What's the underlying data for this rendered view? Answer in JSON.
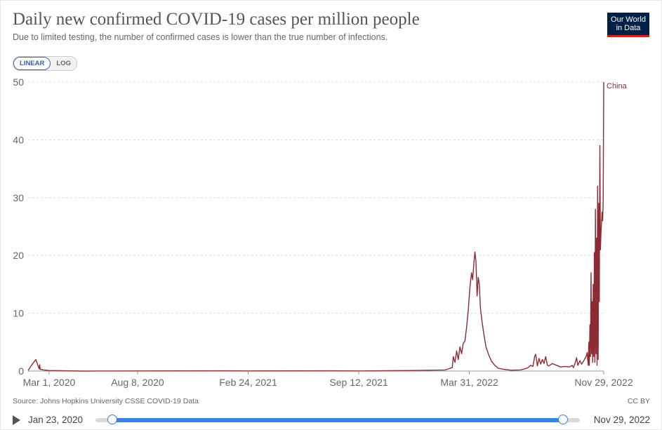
{
  "header": {
    "title": "Daily new confirmed COVID-19 cases per million people",
    "subtitle": "Due to limited testing, the number of confirmed cases is lower than the true number of infections.",
    "logo_line1": "Our World",
    "logo_line2": "in Data"
  },
  "toggle": {
    "linear_label": "LINEAR",
    "log_label": "LOG",
    "selected": "LINEAR"
  },
  "footer": {
    "source": "Source: Johns Hopkins University CSSE COVID-19 Data",
    "license": "CC BY"
  },
  "timeline": {
    "start_label": "Jan 23, 2020",
    "end_label": "Nov 29, 2022",
    "start_fraction": 0.0,
    "end_fraction": 1.0
  },
  "colors": {
    "series": "#8c2b33",
    "grid": "#dddddd",
    "accent": "#3b82e6"
  },
  "chart_data": {
    "type": "line",
    "title": "Daily new confirmed COVID-19 cases per million people",
    "subtitle": "Due to limited testing, the number of confirmed cases is lower than the true number of infections.",
    "xlabel": "",
    "ylabel": "",
    "x_range": [
      "2020-01-23",
      "2022-11-29"
    ],
    "ylim": [
      0,
      50
    ],
    "yticks": [
      0,
      10,
      20,
      30,
      40,
      50
    ],
    "xticks": [
      "Mar 1, 2020",
      "Aug 8, 2020",
      "Feb 24, 2021",
      "Sep 12, 2021",
      "Mar 31, 2022",
      "Nov 29, 2022"
    ],
    "xtick_dates": [
      "2020-03-01",
      "2020-08-08",
      "2021-02-24",
      "2021-09-12",
      "2022-03-31",
      "2022-11-29"
    ],
    "grid": true,
    "series": [
      {
        "name": "China",
        "points": [
          [
            "2020-01-23",
            0.1
          ],
          [
            "2020-01-30",
            1.1
          ],
          [
            "2020-02-06",
            2.0
          ],
          [
            "2020-02-12",
            0.4
          ],
          [
            "2020-02-13",
            1.1
          ],
          [
            "2020-02-14",
            0.3
          ],
          [
            "2020-02-20",
            0.2
          ],
          [
            "2020-03-01",
            0.1
          ],
          [
            "2020-05-01",
            0.0
          ],
          [
            "2020-08-08",
            0.02
          ],
          [
            "2021-01-15",
            0.05
          ],
          [
            "2021-02-24",
            0.02
          ],
          [
            "2021-08-01",
            0.05
          ],
          [
            "2021-09-12",
            0.03
          ],
          [
            "2021-12-15",
            0.1
          ],
          [
            "2022-02-15",
            0.2
          ],
          [
            "2022-02-28",
            0.6
          ],
          [
            "2022-03-02",
            2.5
          ],
          [
            "2022-03-05",
            1.5
          ],
          [
            "2022-03-08",
            3.5
          ],
          [
            "2022-03-11",
            2.0
          ],
          [
            "2022-03-14",
            4.2
          ],
          [
            "2022-03-17",
            3.0
          ],
          [
            "2022-03-20",
            4.8
          ],
          [
            "2022-03-23",
            5.2
          ],
          [
            "2022-03-26",
            7.5
          ],
          [
            "2022-03-29",
            10.5
          ],
          [
            "2022-04-01",
            14.5
          ],
          [
            "2022-04-04",
            17.0
          ],
          [
            "2022-04-06",
            15.8
          ],
          [
            "2022-04-08",
            18.5
          ],
          [
            "2022-04-10",
            20.6
          ],
          [
            "2022-04-12",
            19.0
          ],
          [
            "2022-04-14",
            13.0
          ],
          [
            "2022-04-16",
            16.2
          ],
          [
            "2022-04-18",
            15.0
          ],
          [
            "2022-04-20",
            11.0
          ],
          [
            "2022-04-23",
            8.5
          ],
          [
            "2022-04-26",
            6.5
          ],
          [
            "2022-04-30",
            4.2
          ],
          [
            "2022-05-05",
            2.8
          ],
          [
            "2022-05-10",
            1.7
          ],
          [
            "2022-05-16",
            1.0
          ],
          [
            "2022-05-22",
            0.5
          ],
          [
            "2022-06-01",
            0.3
          ],
          [
            "2022-06-15",
            0.15
          ],
          [
            "2022-07-01",
            0.2
          ],
          [
            "2022-07-10",
            0.4
          ],
          [
            "2022-07-15",
            0.6
          ],
          [
            "2022-07-20",
            1.0
          ],
          [
            "2022-07-24",
            0.8
          ],
          [
            "2022-07-27",
            2.5
          ],
          [
            "2022-07-29",
            2.9
          ],
          [
            "2022-08-01",
            0.9
          ],
          [
            "2022-08-04",
            2.2
          ],
          [
            "2022-08-07",
            1.2
          ],
          [
            "2022-08-10",
            2.0
          ],
          [
            "2022-08-13",
            1.3
          ],
          [
            "2022-08-16",
            2.5
          ],
          [
            "2022-08-19",
            1.0
          ],
          [
            "2022-08-22",
            0.9
          ],
          [
            "2022-08-28",
            1.3
          ],
          [
            "2022-09-05",
            1.0
          ],
          [
            "2022-09-12",
            0.7
          ],
          [
            "2022-09-20",
            0.8
          ],
          [
            "2022-09-28",
            0.7
          ],
          [
            "2022-10-03",
            1.0
          ],
          [
            "2022-10-05",
            0.6
          ],
          [
            "2022-10-08",
            1.3
          ],
          [
            "2022-10-11",
            2.3
          ],
          [
            "2022-10-13",
            1.0
          ],
          [
            "2022-10-17",
            1.8
          ],
          [
            "2022-10-20",
            1.2
          ],
          [
            "2022-10-24",
            1.8
          ],
          [
            "2022-10-28",
            2.5
          ],
          [
            "2022-10-30",
            3.2
          ],
          [
            "2022-11-01",
            1.0
          ],
          [
            "2022-11-02",
            5.0
          ],
          [
            "2022-11-03",
            1.0
          ],
          [
            "2022-11-04",
            8.0
          ],
          [
            "2022-11-05",
            2.5
          ],
          [
            "2022-11-06",
            17.0
          ],
          [
            "2022-11-07",
            3.0
          ],
          [
            "2022-11-08",
            12.0
          ],
          [
            "2022-11-09",
            1.5
          ],
          [
            "2022-11-10",
            15.0
          ],
          [
            "2022-11-11",
            2.5
          ],
          [
            "2022-11-12",
            20.5
          ],
          [
            "2022-11-13",
            1.5
          ],
          [
            "2022-11-14",
            28.0
          ],
          [
            "2022-11-15",
            3.0
          ],
          [
            "2022-11-16",
            23.0
          ],
          [
            "2022-11-17",
            1.0
          ],
          [
            "2022-11-18",
            32.0
          ],
          [
            "2022-11-19",
            2.0
          ],
          [
            "2022-11-20",
            29.0
          ],
          [
            "2022-11-21",
            12.0
          ],
          [
            "2022-11-22",
            39.0
          ],
          [
            "2022-11-23",
            21.0
          ],
          [
            "2022-11-24",
            24.0
          ],
          [
            "2022-11-25",
            25.5
          ],
          [
            "2022-11-26",
            27.5
          ],
          [
            "2022-11-27",
            26.0
          ],
          [
            "2022-11-28",
            29.0
          ],
          [
            "2022-11-29",
            50.0
          ]
        ]
      }
    ]
  }
}
